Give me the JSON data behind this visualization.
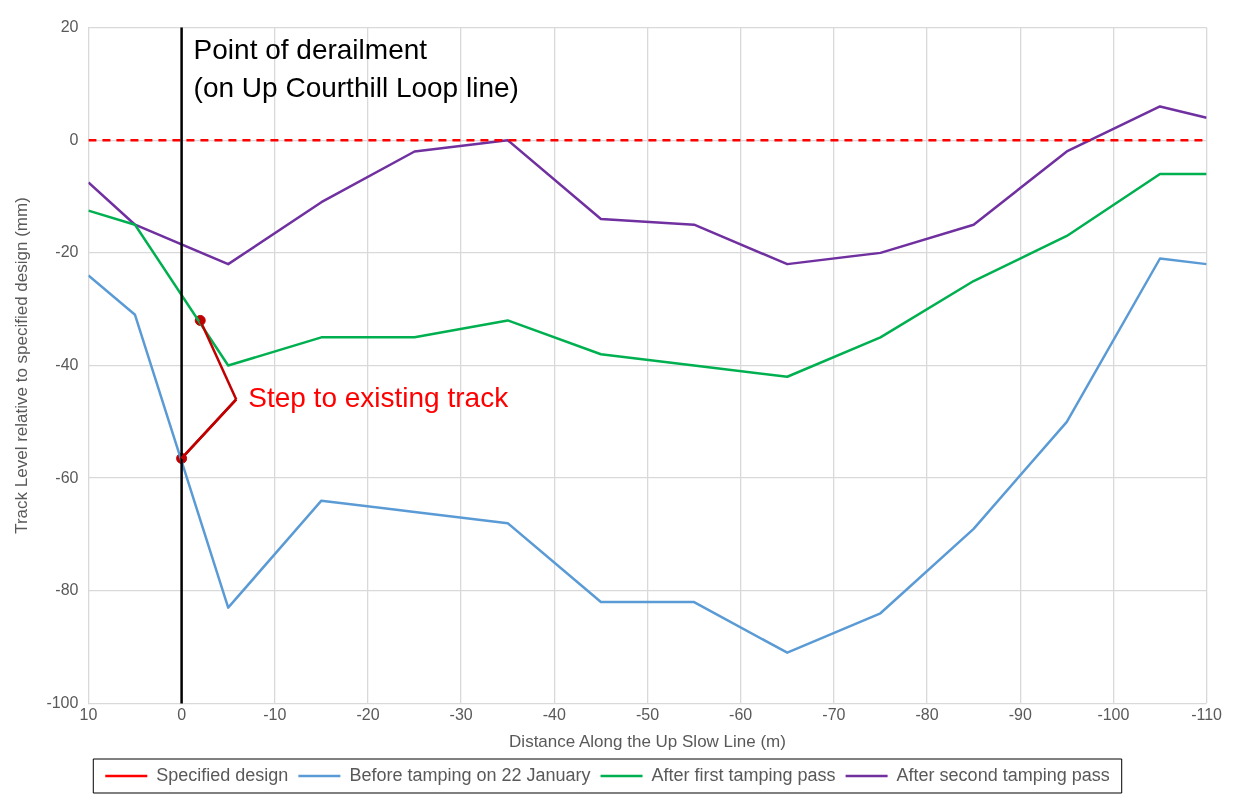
{
  "chart_data": {
    "type": "line",
    "xlabel": "Distance Along the Up Slow Line (m)",
    "ylabel": "Track Level relative to specified design (mm)",
    "x": [
      10,
      5,
      -5,
      -15,
      -25,
      -35,
      -45,
      -55,
      -65,
      -75,
      -85,
      -95,
      -105,
      -110
    ],
    "xlim": [
      10,
      -110
    ],
    "xticks": [
      10,
      0,
      -10,
      -20,
      -30,
      -40,
      -50,
      -60,
      -70,
      -80,
      -90,
      -100,
      -110
    ],
    "ylim": [
      -100,
      20
    ],
    "yticks": [
      -100,
      -80,
      -60,
      -40,
      -20,
      0,
      20
    ],
    "grid": true,
    "legend": "bottom",
    "marker": "none",
    "series": [
      {
        "name": "Specified design",
        "color": "#ff0000",
        "x": [
          10,
          -110
        ],
        "values": [
          0,
          0
        ],
        "line_style": "dashed"
      },
      {
        "name": "Before tamping on 22 January",
        "color": "#5b9bd5",
        "values": [
          -24,
          -31,
          -83,
          -64,
          -66,
          -68,
          -82,
          -82,
          -91,
          -84,
          -69,
          -50,
          -21,
          -22
        ]
      },
      {
        "name": "After first tamping pass",
        "color": "#00b050",
        "values": [
          -12.5,
          -15,
          -40,
          -35,
          -35,
          -32,
          -38,
          -40,
          -42,
          -35,
          -25,
          -17,
          -6,
          -6
        ]
      },
      {
        "name": "After second tamping pass",
        "color": "#7030a0",
        "values": [
          -7.5,
          -15,
          -22,
          -11,
          -2,
          0,
          -14,
          -15,
          -22,
          -20,
          -15,
          -2,
          6,
          4
        ]
      },
      {
        "type": "scatter",
        "color": "#c00000",
        "x": [
          -2,
          0
        ],
        "values": [
          -32,
          -56.5
        ],
        "marker": "circle"
      }
    ],
    "ref_lines": [
      {
        "axis": "x",
        "value": 0,
        "label": "Point of derailment\n(on Up Courthill Loop line)",
        "color": "#000000"
      }
    ],
    "annotations": [
      {
        "text": "Step to existing track",
        "x": 0,
        "y": -56.5
      }
    ]
  }
}
